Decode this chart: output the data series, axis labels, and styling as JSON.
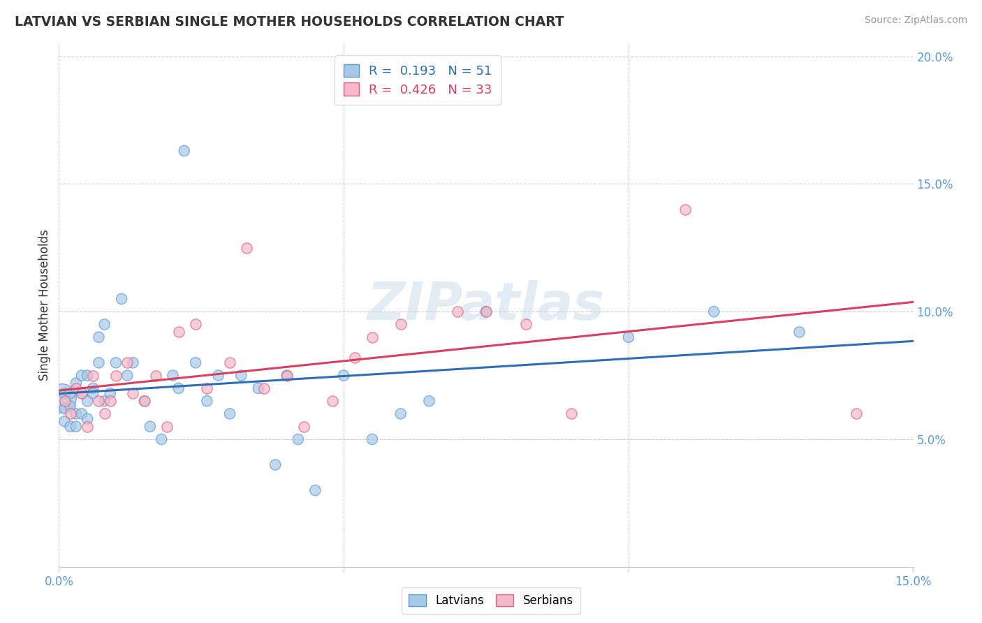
{
  "title": "LATVIAN VS SERBIAN SINGLE MOTHER HOUSEHOLDS CORRELATION CHART",
  "source": "Source: ZipAtlas.com",
  "ylabel": "Single Mother Households",
  "legend_latvian_R": 0.193,
  "legend_latvian_N": 51,
  "legend_serbian_R": 0.426,
  "legend_serbian_N": 33,
  "latvian_color": "#a8c8e8",
  "latvian_edge_color": "#5b9bd5",
  "serbian_color": "#f4b8c8",
  "serbian_edge_color": "#e06080",
  "trend_latvian_color": "#2f6eb5",
  "trend_serbian_color": "#d94060",
  "xlim": [
    0.0,
    0.15
  ],
  "ylim": [
    0.0,
    0.205
  ],
  "yticks": [
    0.05,
    0.1,
    0.15,
    0.2
  ],
  "ytick_labels": [
    "5.0%",
    "10.0%",
    "15.0%",
    "20.0%"
  ],
  "xtick_left_label": "0.0%",
  "xtick_right_label": "15.0%",
  "background_color": "#ffffff",
  "grid_color": "#cccccc",
  "watermark": "ZIPatlas",
  "dot_size": 120,
  "big_dot_size": 900,
  "latvians_x": [
    0.0005,
    0.001,
    0.001,
    0.001,
    0.002,
    0.002,
    0.002,
    0.003,
    0.003,
    0.003,
    0.004,
    0.004,
    0.004,
    0.005,
    0.005,
    0.005,
    0.006,
    0.006,
    0.007,
    0.007,
    0.008,
    0.008,
    0.009,
    0.01,
    0.011,
    0.012,
    0.013,
    0.015,
    0.016,
    0.018,
    0.02,
    0.021,
    0.022,
    0.024,
    0.026,
    0.028,
    0.03,
    0.032,
    0.035,
    0.038,
    0.04,
    0.042,
    0.045,
    0.05,
    0.055,
    0.06,
    0.065,
    0.075,
    0.1,
    0.115,
    0.13
  ],
  "latvians_y": [
    0.066,
    0.057,
    0.062,
    0.068,
    0.055,
    0.063,
    0.068,
    0.06,
    0.055,
    0.072,
    0.068,
    0.06,
    0.075,
    0.058,
    0.065,
    0.075,
    0.07,
    0.068,
    0.09,
    0.08,
    0.065,
    0.095,
    0.068,
    0.08,
    0.105,
    0.075,
    0.08,
    0.065,
    0.055,
    0.05,
    0.075,
    0.07,
    0.163,
    0.08,
    0.065,
    0.075,
    0.06,
    0.075,
    0.07,
    0.04,
    0.075,
    0.05,
    0.03,
    0.075,
    0.05,
    0.06,
    0.065,
    0.1,
    0.09,
    0.1,
    0.092
  ],
  "latvians_big": [
    0
  ],
  "serbians_x": [
    0.001,
    0.002,
    0.003,
    0.004,
    0.005,
    0.006,
    0.007,
    0.008,
    0.009,
    0.01,
    0.012,
    0.013,
    0.015,
    0.017,
    0.019,
    0.021,
    0.024,
    0.026,
    0.03,
    0.033,
    0.036,
    0.04,
    0.043,
    0.048,
    0.052,
    0.055,
    0.06,
    0.07,
    0.075,
    0.082,
    0.09,
    0.11,
    0.14
  ],
  "serbians_y": [
    0.065,
    0.06,
    0.07,
    0.068,
    0.055,
    0.075,
    0.065,
    0.06,
    0.065,
    0.075,
    0.08,
    0.068,
    0.065,
    0.075,
    0.055,
    0.092,
    0.095,
    0.07,
    0.08,
    0.125,
    0.07,
    0.075,
    0.055,
    0.065,
    0.082,
    0.09,
    0.095,
    0.1,
    0.1,
    0.095,
    0.06,
    0.14,
    0.06
  ]
}
